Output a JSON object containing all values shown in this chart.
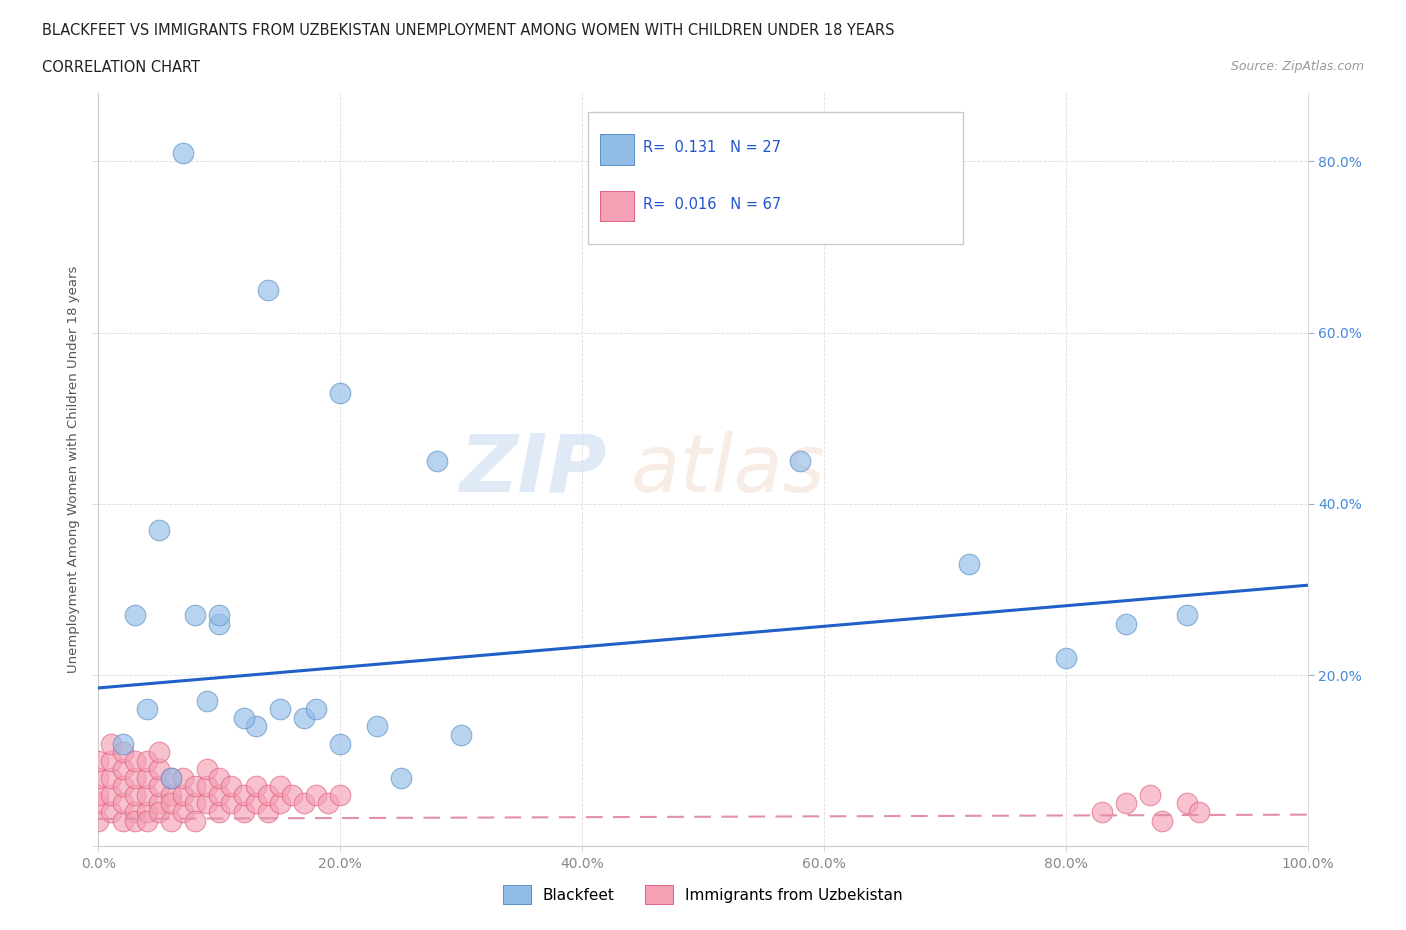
{
  "title_line1": "BLACKFEET VS IMMIGRANTS FROM UZBEKISTAN UNEMPLOYMENT AMONG WOMEN WITH CHILDREN UNDER 18 YEARS",
  "title_line2": "CORRELATION CHART",
  "source_text": "Source: ZipAtlas.com",
  "ylabel": "Unemployment Among Women with Children Under 18 years",
  "xlim": [
    0.0,
    1.0
  ],
  "ylim": [
    0.0,
    0.88
  ],
  "xticks": [
    0.0,
    0.2,
    0.4,
    0.6,
    0.8,
    1.0
  ],
  "xticklabels": [
    "0.0%",
    "20.0%",
    "40.0%",
    "60.0%",
    "80.0%",
    "100.0%"
  ],
  "yticks_left": [
    0.0,
    0.2,
    0.4,
    0.6,
    0.8
  ],
  "yticklabels_left": [
    "",
    "",
    "",
    "",
    ""
  ],
  "yticks_right": [
    0.2,
    0.4,
    0.6,
    0.8
  ],
  "yticklabels_right": [
    "20.0%",
    "40.0%",
    "60.0%",
    "80.0%"
  ],
  "blackfeet_color": "#92bce8",
  "blackfeet_edge": "#5a8fc4",
  "uzbekistan_color": "#f4a0b5",
  "uzbekistan_edge": "#e06080",
  "trend_blue_color": "#2060c8",
  "trend_pink_color": "#e090a8",
  "legend_label_blackfeet": "Blackfeet",
  "legend_label_uzbekistan": "Immigrants from Uzbekistan",
  "R_blackfeet": 0.131,
  "N_blackfeet": 27,
  "R_uzbekistan": 0.016,
  "N_uzbekistan": 67,
  "blackfeet_x": [
    0.07,
    0.14,
    0.2,
    0.05,
    0.1,
    0.17,
    0.08,
    0.03,
    0.28,
    0.58,
    0.72,
    0.85,
    0.9,
    0.8,
    0.02,
    0.04,
    0.09,
    0.13,
    0.18,
    0.23,
    0.3,
    0.06,
    0.12,
    0.2,
    0.15,
    0.25,
    0.1
  ],
  "blackfeet_y": [
    0.81,
    0.65,
    0.53,
    0.37,
    0.26,
    0.15,
    0.27,
    0.27,
    0.45,
    0.45,
    0.33,
    0.26,
    0.27,
    0.22,
    0.12,
    0.16,
    0.17,
    0.14,
    0.16,
    0.14,
    0.13,
    0.08,
    0.15,
    0.12,
    0.16,
    0.08,
    0.27
  ],
  "uzbekistan_x": [
    0.0,
    0.0,
    0.0,
    0.0,
    0.0,
    0.01,
    0.01,
    0.01,
    0.01,
    0.01,
    0.02,
    0.02,
    0.02,
    0.02,
    0.02,
    0.03,
    0.03,
    0.03,
    0.03,
    0.03,
    0.04,
    0.04,
    0.04,
    0.04,
    0.04,
    0.05,
    0.05,
    0.05,
    0.05,
    0.05,
    0.06,
    0.06,
    0.06,
    0.06,
    0.07,
    0.07,
    0.07,
    0.08,
    0.08,
    0.08,
    0.09,
    0.09,
    0.09,
    0.1,
    0.1,
    0.1,
    0.11,
    0.11,
    0.12,
    0.12,
    0.13,
    0.13,
    0.14,
    0.14,
    0.15,
    0.15,
    0.16,
    0.17,
    0.18,
    0.19,
    0.2,
    0.83,
    0.85,
    0.87,
    0.88,
    0.9,
    0.91
  ],
  "uzbekistan_y": [
    0.03,
    0.05,
    0.06,
    0.08,
    0.1,
    0.04,
    0.06,
    0.08,
    0.1,
    0.12,
    0.03,
    0.05,
    0.07,
    0.09,
    0.11,
    0.04,
    0.06,
    0.08,
    0.1,
    0.03,
    0.04,
    0.06,
    0.08,
    0.1,
    0.03,
    0.05,
    0.07,
    0.09,
    0.11,
    0.04,
    0.06,
    0.08,
    0.03,
    0.05,
    0.04,
    0.06,
    0.08,
    0.05,
    0.07,
    0.03,
    0.05,
    0.07,
    0.09,
    0.04,
    0.06,
    0.08,
    0.05,
    0.07,
    0.04,
    0.06,
    0.05,
    0.07,
    0.04,
    0.06,
    0.05,
    0.07,
    0.06,
    0.05,
    0.06,
    0.05,
    0.06,
    0.04,
    0.05,
    0.06,
    0.03,
    0.05,
    0.04
  ],
  "trend_blue_x0": 0.0,
  "trend_blue_y0": 0.185,
  "trend_blue_x1": 1.0,
  "trend_blue_y1": 0.305,
  "trend_pink_x0": 0.0,
  "trend_pink_y0": 0.032,
  "trend_pink_x1": 1.0,
  "trend_pink_y1": 0.037,
  "bg_color": "#ffffff",
  "grid_color": "#dddddd",
  "tick_color": "#888888",
  "right_tick_color": "#4488dd"
}
